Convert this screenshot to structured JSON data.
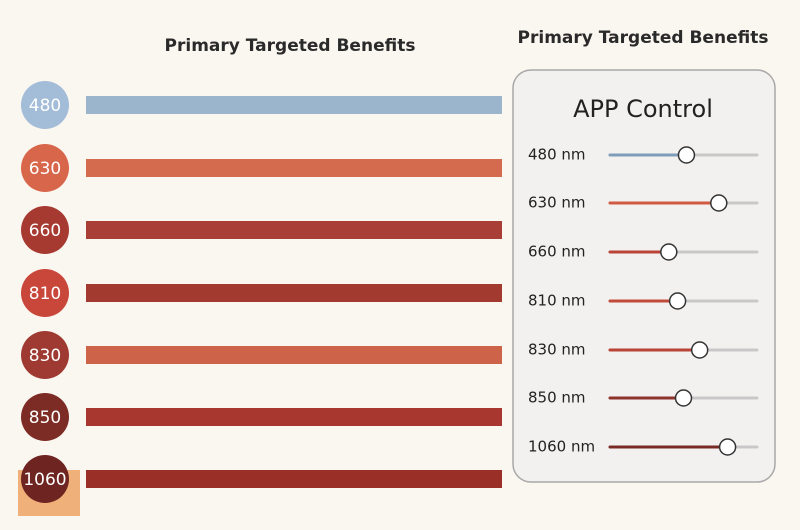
{
  "header": {
    "left_title": "Primary Targeted Benefits",
    "right_title": "Primary Targeted Benefits"
  },
  "wavelengths": [
    {
      "label": "480",
      "color": "#a3bcd8",
      "bar_color": "#9bb5cd"
    },
    {
      "label": "630",
      "color": "#d8664a",
      "bar_color": "#d46a4e"
    },
    {
      "label": "660",
      "color": "#a63a31",
      "bar_color": "#a83e36"
    },
    {
      "label": "810",
      "color": "#c9473a",
      "bar_color": "#a33a30"
    },
    {
      "label": "830",
      "color": "#9e3a31",
      "bar_color": "#cd6349"
    },
    {
      "label": "850",
      "color": "#7c2c25",
      "bar_color": "#a8382f"
    },
    {
      "label": "1060",
      "color": "#6e2420",
      "bar_color": "#9a2f28"
    }
  ],
  "panel": {
    "title": "APP Control",
    "slider_range": [
      0,
      100
    ],
    "sliders": [
      {
        "label": "480 nm",
        "level": 52,
        "color": "#7f9dbb"
      },
      {
        "label": "630 nm",
        "level": 74,
        "color": "#d05a42"
      },
      {
        "label": "660 nm",
        "level": 40,
        "color": "#b84436"
      },
      {
        "label": "810 nm",
        "level": 46,
        "color": "#c24a3a"
      },
      {
        "label": "830 nm",
        "level": 61,
        "color": "#b84436"
      },
      {
        "label": "850 nm",
        "level": 50,
        "color": "#8e322b"
      },
      {
        "label": "1060 nm",
        "level": 80,
        "color": "#7a2a24"
      }
    ]
  }
}
